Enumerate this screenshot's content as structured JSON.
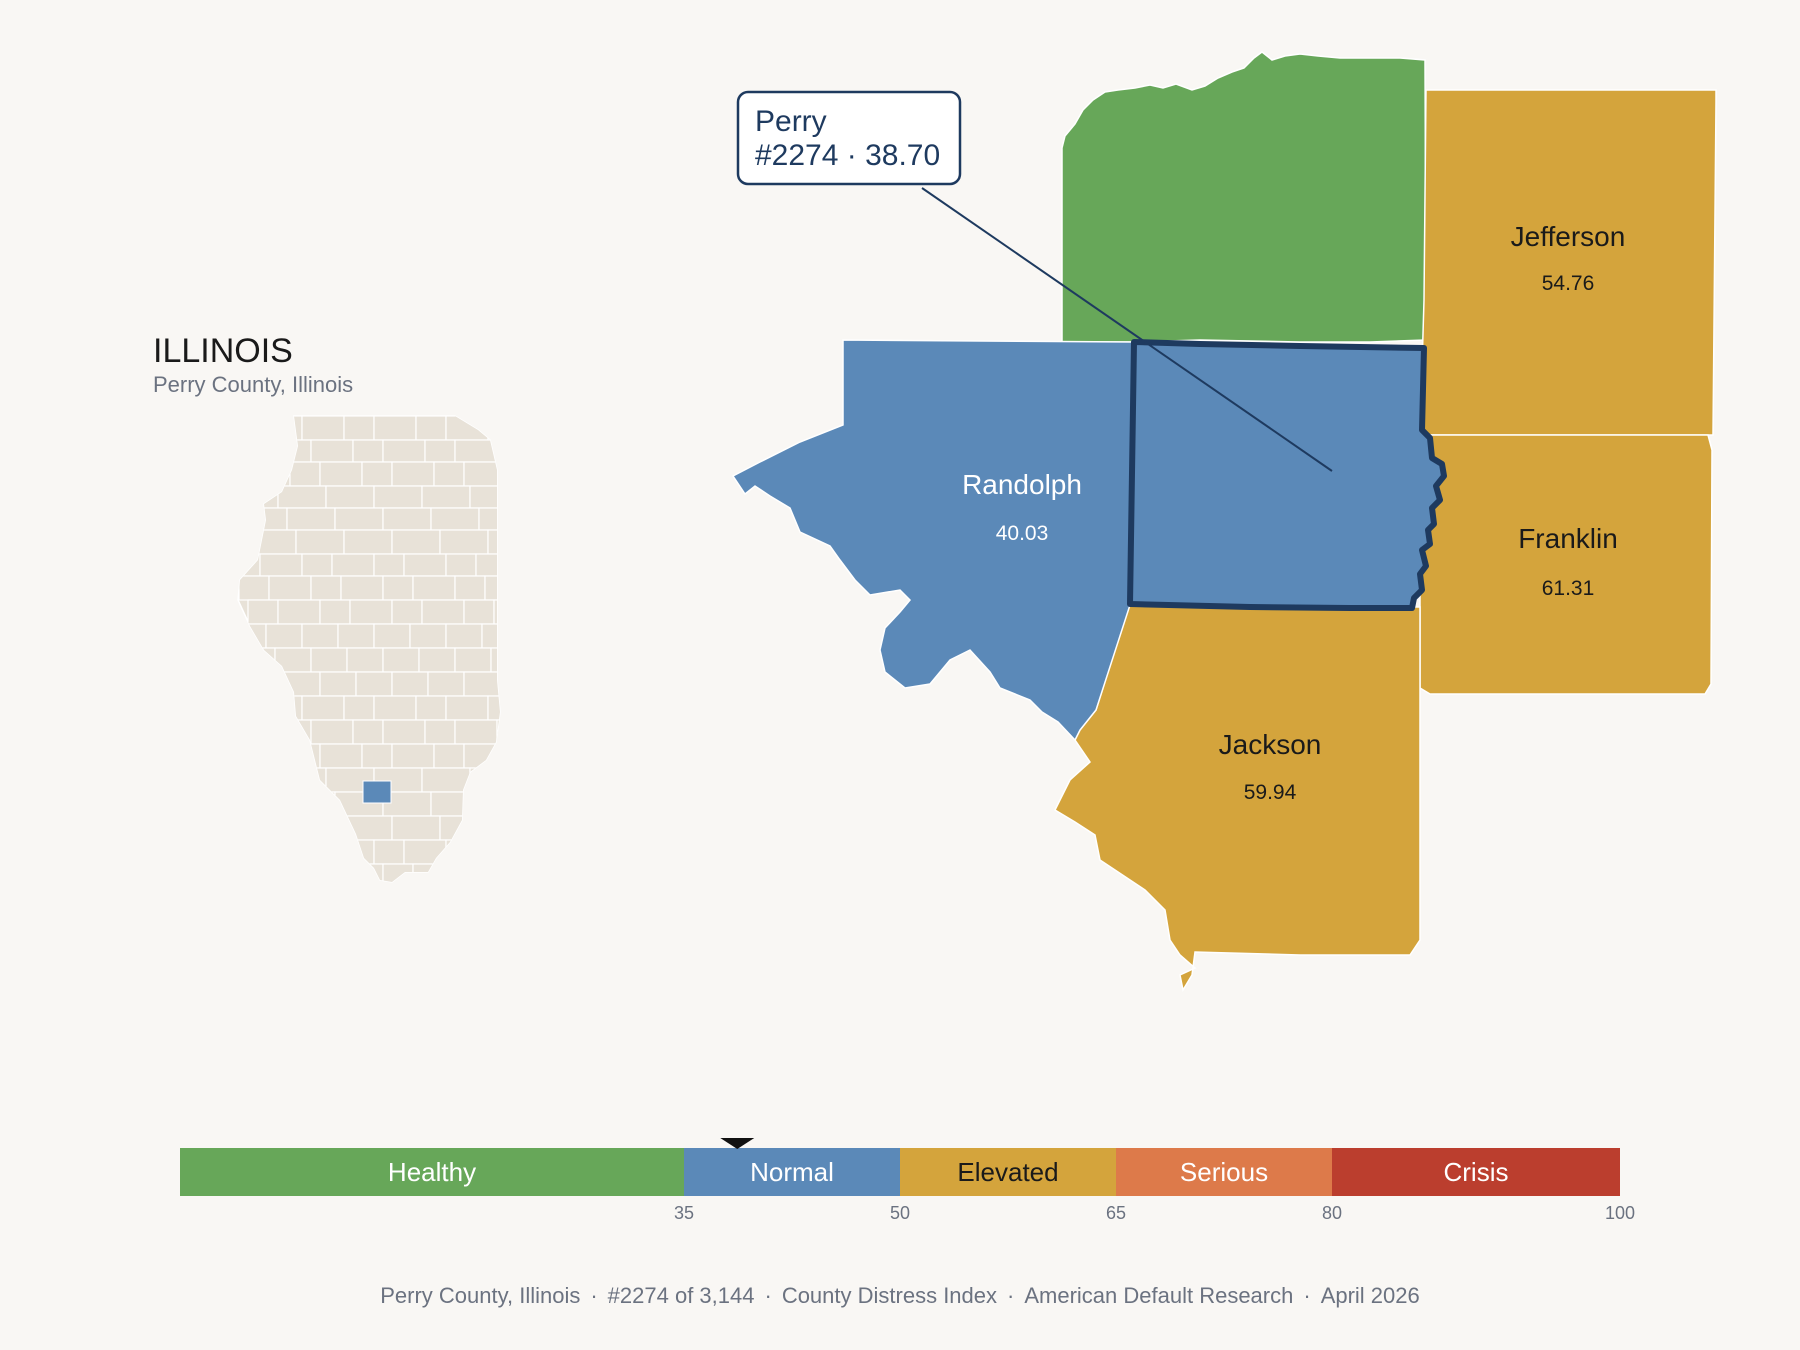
{
  "state": {
    "title": "ILLINOIS",
    "subtitle": "Perry County, Illinois"
  },
  "focus": {
    "name": "Perry",
    "detail": "#2274 · 38.70",
    "rank": 2274,
    "score": 38.7
  },
  "counties": [
    {
      "id": "perry",
      "name": "",
      "value": "",
      "color": "#5b89b8"
    },
    {
      "id": "washington",
      "name": "",
      "value": "",
      "color": "#67a759"
    },
    {
      "id": "jefferson",
      "name": "Jefferson",
      "value": "54.76",
      "color": "#d4a43c"
    },
    {
      "id": "franklin",
      "name": "Franklin",
      "value": "61.31",
      "color": "#d4a43c"
    },
    {
      "id": "randolph",
      "name": "Randolph",
      "value": "40.03",
      "color": "#5b89b8"
    },
    {
      "id": "jackson",
      "name": "Jackson",
      "value": "59.94",
      "color": "#d4a43c"
    }
  ],
  "scale": {
    "min": 0,
    "max": 100,
    "bands": [
      {
        "label": "Healthy",
        "from": 0,
        "to": 35,
        "color": "#67a759",
        "text_color": "#ffffff"
      },
      {
        "label": "Normal",
        "from": 35,
        "to": 50,
        "color": "#5b89b8",
        "text_color": "#ffffff"
      },
      {
        "label": "Elevated",
        "from": 50,
        "to": 65,
        "color": "#d4a43c",
        "text_color": "#1a1a1a"
      },
      {
        "label": "Serious",
        "from": 65,
        "to": 80,
        "color": "#dd7a4a",
        "text_color": "#ffffff"
      },
      {
        "label": "Crisis",
        "from": 80,
        "to": 100,
        "color": "#bb3e2e",
        "text_color": "#ffffff"
      }
    ],
    "ticks": [
      "35",
      "50",
      "65",
      "80",
      "100"
    ],
    "marker_value": 38.7
  },
  "footer": {
    "items": [
      "Perry County, Illinois",
      "#2274 of 3,144",
      "County Distress Index",
      "American Default Research",
      "April 2026"
    ],
    "separator": "·"
  },
  "colors": {
    "highlight_stroke": "#1e3a5f",
    "locator_fill": "#e8e2d8",
    "locator_highlight": "#5b89b8"
  }
}
